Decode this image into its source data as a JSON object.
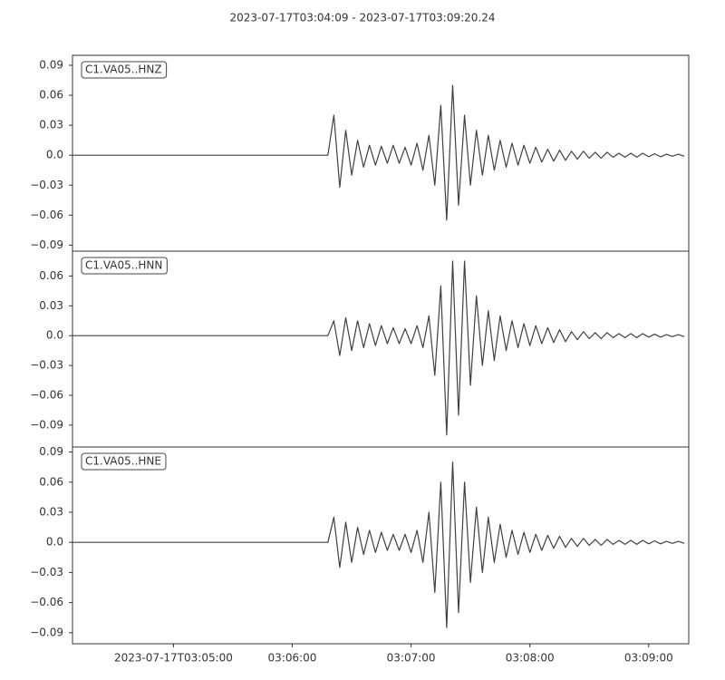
{
  "chart_data": [
    {
      "type": "line",
      "title": "2023-07-17T03:04:09  -  2023-07-17T03:09:20.24",
      "xlim": [
        "2023-07-17T03:04:09",
        "2023-07-17T03:09:20.24"
      ],
      "ylim": [
        -0.096,
        0.1
      ],
      "yticks": [
        {
          "value": -0.09,
          "label": "−0.09"
        },
        {
          "value": -0.06,
          "label": "−0.06"
        },
        {
          "value": -0.03,
          "label": "−0.03"
        },
        {
          "value": 0,
          "label": "0.0"
        },
        0.03,
        0.06,
        0.09
      ],
      "x": [
        "2023-07-17T03:04:09",
        "2023-07-17T03:06:18",
        "2023-07-17T03:06:21",
        "2023-07-17T03:06:24",
        "2023-07-17T03:06:27",
        "2023-07-17T03:06:30",
        "2023-07-17T03:06:33",
        "2023-07-17T03:06:36",
        "2023-07-17T03:06:39",
        "2023-07-17T03:06:42",
        "2023-07-17T03:06:45",
        "2023-07-17T03:06:48",
        "2023-07-17T03:06:51",
        "2023-07-17T03:06:54",
        "2023-07-17T03:06:57",
        "2023-07-17T03:07:00",
        "2023-07-17T03:07:03",
        "2023-07-17T03:07:06",
        "2023-07-17T03:07:09",
        "2023-07-17T03:07:12",
        "2023-07-17T03:07:15",
        "2023-07-17T03:07:18",
        "2023-07-17T03:07:21",
        "2023-07-17T03:07:24",
        "2023-07-17T03:07:27",
        "2023-07-17T03:07:30",
        "2023-07-17T03:07:33",
        "2023-07-17T03:07:36",
        "2023-07-17T03:07:39",
        "2023-07-17T03:07:42",
        "2023-07-17T03:07:45",
        "2023-07-17T03:07:48",
        "2023-07-17T03:07:51",
        "2023-07-17T03:07:54",
        "2023-07-17T03:07:57",
        "2023-07-17T03:08:00",
        "2023-07-17T03:08:03",
        "2023-07-17T03:08:06",
        "2023-07-17T03:08:09",
        "2023-07-17T03:08:12",
        "2023-07-17T03:08:15",
        "2023-07-17T03:08:18",
        "2023-07-17T03:08:21",
        "2023-07-17T03:08:24",
        "2023-07-17T03:08:27",
        "2023-07-17T03:08:30",
        "2023-07-17T03:08:33",
        "2023-07-17T03:08:36",
        "2023-07-17T03:08:39",
        "2023-07-17T03:08:42",
        "2023-07-17T03:08:45",
        "2023-07-17T03:08:48",
        "2023-07-17T03:08:51",
        "2023-07-17T03:08:54",
        "2023-07-17T03:08:57",
        "2023-07-17T03:09:00",
        "2023-07-17T03:09:03",
        "2023-07-17T03:09:06",
        "2023-07-17T03:09:09",
        "2023-07-17T03:09:12",
        "2023-07-17T03:09:15",
        "2023-07-17T03:09:18"
      ],
      "series": [
        {
          "name": "C1.VA05..HNZ",
          "color": "#404040",
          "values": [
            0,
            0,
            0.04,
            -0.032,
            0.025,
            -0.02,
            0.015,
            -0.012,
            0.01,
            -0.01,
            0.009,
            -0.008,
            0.01,
            -0.008,
            0.008,
            -0.01,
            0.012,
            -0.015,
            0.02,
            -0.03,
            0.05,
            -0.065,
            0.07,
            -0.05,
            0.04,
            -0.03,
            0.025,
            -0.02,
            0.02,
            -0.015,
            0.015,
            -0.012,
            0.012,
            -0.01,
            0.01,
            -0.008,
            0.008,
            -0.007,
            0.006,
            -0.006,
            0.005,
            -0.005,
            0.004,
            -0.004,
            0.004,
            -0.003,
            0.003,
            -0.003,
            0.003,
            -0.002,
            0.002,
            -0.002,
            0.002,
            -0.002,
            0.002,
            -0.0015,
            0.0015,
            -0.0015,
            0.001,
            -0.001,
            0.001,
            -0.001
          ]
        }
      ]
    },
    {
      "type": "line",
      "xlim": [
        "2023-07-17T03:04:09",
        "2023-07-17T03:09:20.24"
      ],
      "ylim": [
        -0.112,
        0.085
      ],
      "yticks": [
        {
          "value": -0.09,
          "label": "−0.09"
        },
        {
          "value": -0.06,
          "label": "−0.06"
        },
        {
          "value": -0.03,
          "label": "−0.03"
        },
        {
          "value": 0,
          "label": "0.0"
        },
        0.03,
        0.06
      ],
      "x": [
        "2023-07-17T03:04:09",
        "2023-07-17T03:06:18",
        "2023-07-17T03:06:21",
        "2023-07-17T03:06:24",
        "2023-07-17T03:06:27",
        "2023-07-17T03:06:30",
        "2023-07-17T03:06:33",
        "2023-07-17T03:06:36",
        "2023-07-17T03:06:39",
        "2023-07-17T03:06:42",
        "2023-07-17T03:06:45",
        "2023-07-17T03:06:48",
        "2023-07-17T03:06:51",
        "2023-07-17T03:06:54",
        "2023-07-17T03:06:57",
        "2023-07-17T03:07:00",
        "2023-07-17T03:07:03",
        "2023-07-17T03:07:06",
        "2023-07-17T03:07:09",
        "2023-07-17T03:07:12",
        "2023-07-17T03:07:15",
        "2023-07-17T03:07:18",
        "2023-07-17T03:07:21",
        "2023-07-17T03:07:24",
        "2023-07-17T03:07:27",
        "2023-07-17T03:07:30",
        "2023-07-17T03:07:33",
        "2023-07-17T03:07:36",
        "2023-07-17T03:07:39",
        "2023-07-17T03:07:42",
        "2023-07-17T03:07:45",
        "2023-07-17T03:07:48",
        "2023-07-17T03:07:51",
        "2023-07-17T03:07:54",
        "2023-07-17T03:07:57",
        "2023-07-17T03:08:00",
        "2023-07-17T03:08:03",
        "2023-07-17T03:08:06",
        "2023-07-17T03:08:09",
        "2023-07-17T03:08:12",
        "2023-07-17T03:08:15",
        "2023-07-17T03:08:18",
        "2023-07-17T03:08:21",
        "2023-07-17T03:08:24",
        "2023-07-17T03:08:27",
        "2023-07-17T03:08:30",
        "2023-07-17T03:08:33",
        "2023-07-17T03:08:36",
        "2023-07-17T03:08:39",
        "2023-07-17T03:08:42",
        "2023-07-17T03:08:45",
        "2023-07-17T03:08:48",
        "2023-07-17T03:08:51",
        "2023-07-17T03:08:54",
        "2023-07-17T03:08:57",
        "2023-07-17T03:09:00",
        "2023-07-17T03:09:03",
        "2023-07-17T03:09:06",
        "2023-07-17T03:09:09",
        "2023-07-17T03:09:12",
        "2023-07-17T03:09:15",
        "2023-07-17T03:09:18"
      ],
      "series": [
        {
          "name": "C1.VA05..HNN",
          "color": "#404040",
          "values": [
            0,
            0,
            0.015,
            -0.02,
            0.018,
            -0.015,
            0.015,
            -0.012,
            0.012,
            -0.01,
            0.01,
            -0.008,
            0.008,
            -0.008,
            0.007,
            -0.008,
            0.01,
            -0.012,
            0.02,
            -0.04,
            0.05,
            -0.1,
            0.075,
            -0.08,
            0.075,
            -0.05,
            0.04,
            -0.03,
            0.025,
            -0.025,
            0.02,
            -0.015,
            0.015,
            -0.012,
            0.012,
            -0.01,
            0.01,
            -0.008,
            0.008,
            -0.007,
            0.006,
            -0.006,
            0.004,
            -0.004,
            0.004,
            -0.003,
            0.003,
            -0.003,
            0.003,
            -0.002,
            0.002,
            -0.002,
            0.002,
            -0.002,
            0.002,
            -0.0015,
            0.0015,
            -0.0015,
            0.001,
            -0.001,
            0.001,
            -0.001
          ]
        }
      ]
    },
    {
      "type": "line",
      "xlim": [
        "2023-07-17T03:04:09",
        "2023-07-17T03:09:20.24"
      ],
      "xticks": [
        "2023-07-17T03:05:00",
        {
          "value": "2023-07-17T03:06:00",
          "label": "03:06:00"
        },
        {
          "value": "2023-07-17T03:07:00",
          "label": "03:07:00"
        },
        {
          "value": "2023-07-17T03:08:00",
          "label": "03:08:00"
        },
        {
          "value": "2023-07-17T03:09:00",
          "label": "03:09:00"
        }
      ],
      "ylim": [
        -0.101,
        0.095
      ],
      "yticks": [
        {
          "value": -0.09,
          "label": "−0.09"
        },
        {
          "value": -0.06,
          "label": "−0.06"
        },
        {
          "value": -0.03,
          "label": "−0.03"
        },
        {
          "value": 0,
          "label": "0.0"
        },
        0.03,
        0.06,
        0.09
      ],
      "x": [
        "2023-07-17T03:04:09",
        "2023-07-17T03:06:18",
        "2023-07-17T03:06:21",
        "2023-07-17T03:06:24",
        "2023-07-17T03:06:27",
        "2023-07-17T03:06:30",
        "2023-07-17T03:06:33",
        "2023-07-17T03:06:36",
        "2023-07-17T03:06:39",
        "2023-07-17T03:06:42",
        "2023-07-17T03:06:45",
        "2023-07-17T03:06:48",
        "2023-07-17T03:06:51",
        "2023-07-17T03:06:54",
        "2023-07-17T03:06:57",
        "2023-07-17T03:07:00",
        "2023-07-17T03:07:03",
        "2023-07-17T03:07:06",
        "2023-07-17T03:07:09",
        "2023-07-17T03:07:12",
        "2023-07-17T03:07:15",
        "2023-07-17T03:07:18",
        "2023-07-17T03:07:21",
        "2023-07-17T03:07:24",
        "2023-07-17T03:07:27",
        "2023-07-17T03:07:30",
        "2023-07-17T03:07:33",
        "2023-07-17T03:07:36",
        "2023-07-17T03:07:39",
        "2023-07-17T03:07:42",
        "2023-07-17T03:07:45",
        "2023-07-17T03:07:48",
        "2023-07-17T03:07:51",
        "2023-07-17T03:07:54",
        "2023-07-17T03:07:57",
        "2023-07-17T03:08:00",
        "2023-07-17T03:08:03",
        "2023-07-17T03:08:06",
        "2023-07-17T03:08:09",
        "2023-07-17T03:08:12",
        "2023-07-17T03:08:15",
        "2023-07-17T03:08:18",
        "2023-07-17T03:08:21",
        "2023-07-17T03:08:24",
        "2023-07-17T03:08:27",
        "2023-07-17T03:08:30",
        "2023-07-17T03:08:33",
        "2023-07-17T03:08:36",
        "2023-07-17T03:08:39",
        "2023-07-17T03:08:42",
        "2023-07-17T03:08:45",
        "2023-07-17T03:08:48",
        "2023-07-17T03:08:51",
        "2023-07-17T03:08:54",
        "2023-07-17T03:08:57",
        "2023-07-17T03:09:00",
        "2023-07-17T03:09:03",
        "2023-07-17T03:09:06",
        "2023-07-17T03:09:09",
        "2023-07-17T03:09:12",
        "2023-07-17T03:09:15",
        "2023-07-17T03:09:18"
      ],
      "series": [
        {
          "name": "C1.VA05..HNE",
          "color": "#404040",
          "values": [
            0,
            0,
            0.025,
            -0.025,
            0.02,
            -0.02,
            0.015,
            -0.012,
            0.012,
            -0.01,
            0.01,
            -0.008,
            0.008,
            -0.008,
            0.008,
            -0.01,
            0.012,
            -0.02,
            0.03,
            -0.05,
            0.06,
            -0.085,
            0.08,
            -0.07,
            0.06,
            -0.04,
            0.035,
            -0.03,
            0.025,
            -0.02,
            0.018,
            -0.015,
            0.012,
            -0.012,
            0.01,
            -0.01,
            0.008,
            -0.008,
            0.007,
            -0.006,
            0.006,
            -0.005,
            0.004,
            -0.004,
            0.004,
            -0.003,
            0.003,
            -0.003,
            0.003,
            -0.002,
            0.002,
            -0.002,
            0.002,
            -0.002,
            0.002,
            -0.0015,
            0.0015,
            -0.0015,
            0.001,
            -0.001,
            0.001,
            -0.001
          ]
        }
      ]
    }
  ]
}
